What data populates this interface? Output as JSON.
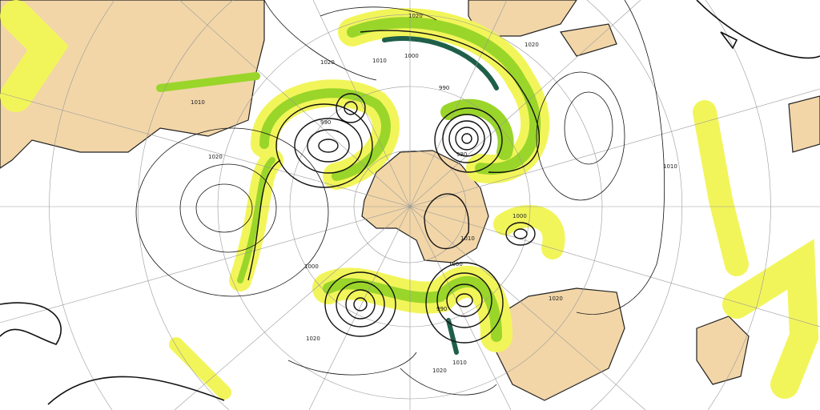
{
  "colors": {
    "land": "#f2d6a8",
    "precip_light": "#f2f55a",
    "precip_mid": "#9ad52a",
    "precip_heavy": "#1f5f4a",
    "contour": "#111111",
    "graticule": "#999999"
  },
  "isobar_labels": [
    {
      "text": "1020"
    },
    {
      "text": "1020"
    },
    {
      "text": "1010"
    },
    {
      "text": "1000"
    },
    {
      "text": "990"
    },
    {
      "text": "990"
    },
    {
      "text": "980"
    },
    {
      "text": "1020"
    },
    {
      "text": "1010"
    },
    {
      "text": "1000"
    },
    {
      "text": "1010"
    },
    {
      "text": "1000"
    },
    {
      "text": "1000"
    },
    {
      "text": "1020"
    },
    {
      "text": "1020"
    },
    {
      "text": "1010"
    },
    {
      "text": "1020"
    },
    {
      "text": "990"
    },
    {
      "text": "1010"
    },
    {
      "text": "1020"
    }
  ]
}
